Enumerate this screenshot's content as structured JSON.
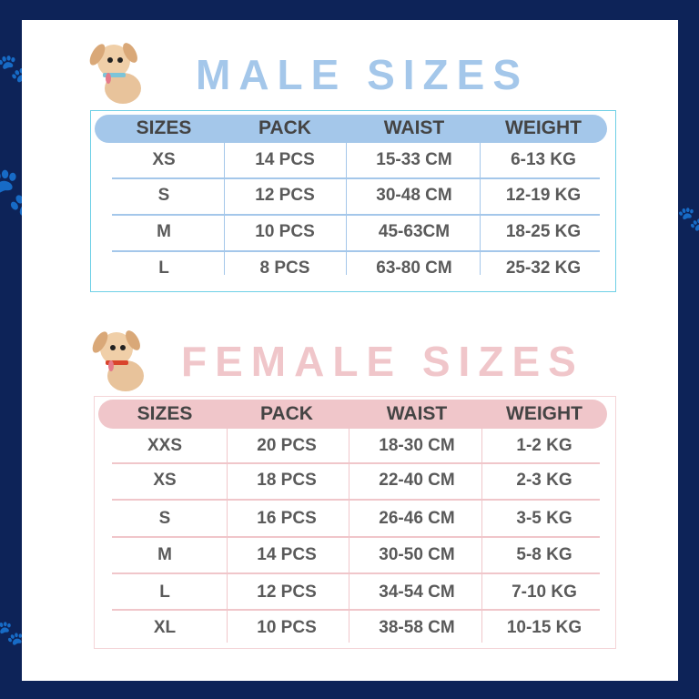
{
  "colors": {
    "background": "#0d2358",
    "male_accent": "#a4c7ea",
    "male_border": "#6fd0e6",
    "female_accent": "#f0c6ca",
    "female_border": "#f4d5d8",
    "text": "#5a5a5a"
  },
  "icons": [
    "dog-blue-collar-icon",
    "dog-red-collar-icon",
    "paw-print-icon"
  ],
  "male": {
    "title": "MALE SIZES",
    "headers": [
      "SIZES",
      "PACK",
      "WAIST",
      "WEIGHT"
    ],
    "rows": [
      [
        "XS",
        "14 PCS",
        "15-33 CM",
        "6-13 KG"
      ],
      [
        "S",
        "12 PCS",
        "30-48 CM",
        "12-19 KG"
      ],
      [
        "M",
        "10 PCS",
        "45-63CM",
        "18-25 KG"
      ],
      [
        "L",
        "8 PCS",
        "63-80 CM",
        "25-32 KG"
      ]
    ]
  },
  "female": {
    "title": "FEMALE SIZES",
    "headers": [
      "SIZES",
      "PACK",
      "WAIST",
      "WEIGHT"
    ],
    "rows": [
      [
        "XXS",
        "20 PCS",
        "18-30 CM",
        "1-2 KG"
      ],
      [
        "XS",
        "18 PCS",
        "22-40 CM",
        "2-3 KG"
      ],
      [
        "S",
        "16 PCS",
        "26-46 CM",
        "3-5 KG"
      ],
      [
        "M",
        "14 PCS",
        "30-50 CM",
        "5-8 KG"
      ],
      [
        "L",
        "12 PCS",
        "34-54 CM",
        "7-10 KG"
      ],
      [
        "XL",
        "10 PCS",
        "38-58 CM",
        "10-15 KG"
      ]
    ]
  }
}
